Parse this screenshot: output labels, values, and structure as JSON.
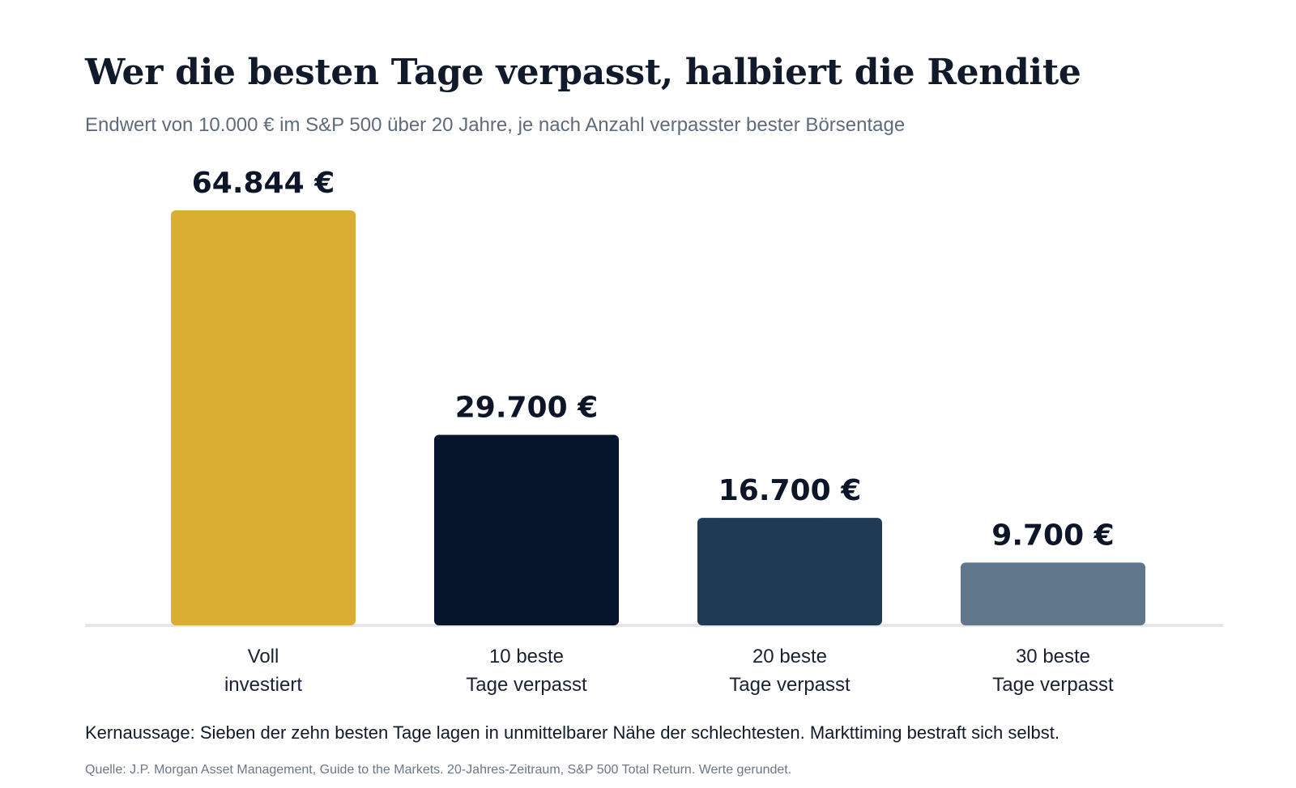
{
  "header": {
    "title": "Wer die besten Tage verpasst, halbiert die Rendite",
    "subtitle": "Endwert von 10.000 € im S&P 500 über 20 Jahre, je nach Anzahl verpasster bester Börsentage"
  },
  "chart_data": {
    "type": "bar",
    "title": "Wer die besten Tage verpasst, halbiert die Rendite",
    "subtitle": "Endwert von 10.000 € im S&P 500 über 20 Jahre, je nach Anzahl verpasster bester Börsentage",
    "xlabel": "",
    "ylabel": "",
    "ylim": [
      0,
      64844
    ],
    "grid": false,
    "legend": "none",
    "categories": [
      [
        "Voll",
        "investiert"
      ],
      [
        "10 beste",
        "Tage verpasst"
      ],
      [
        "20 beste",
        "Tage verpasst"
      ],
      [
        "30 beste",
        "Tage verpasst"
      ]
    ],
    "values": [
      64844,
      29700,
      16700,
      9700
    ],
    "value_labels": [
      "64.844 €",
      "29.700 €",
      "16.700 €",
      "9.700 €"
    ],
    "colors": [
      "#d9ae33",
      "#06152b",
      "#1e3a54",
      "#5f768b"
    ]
  },
  "colors": {
    "title": "#111a2b",
    "subtitle": "#5f6b7c",
    "baseline": "#e4e6ec",
    "category_label": "#1a2232"
  },
  "footer": {
    "conclusion": "Kernaussage: Sieben der zehn besten Tage lagen in unmittelbarer Nähe der schlechtesten. Markttiming bestraft sich selbst.",
    "source": "Quelle: J.P. Morgan Asset Management, Guide to the Markets. 20-Jahres-Zeitraum, S&P 500 Total Return. Werte gerundet."
  }
}
